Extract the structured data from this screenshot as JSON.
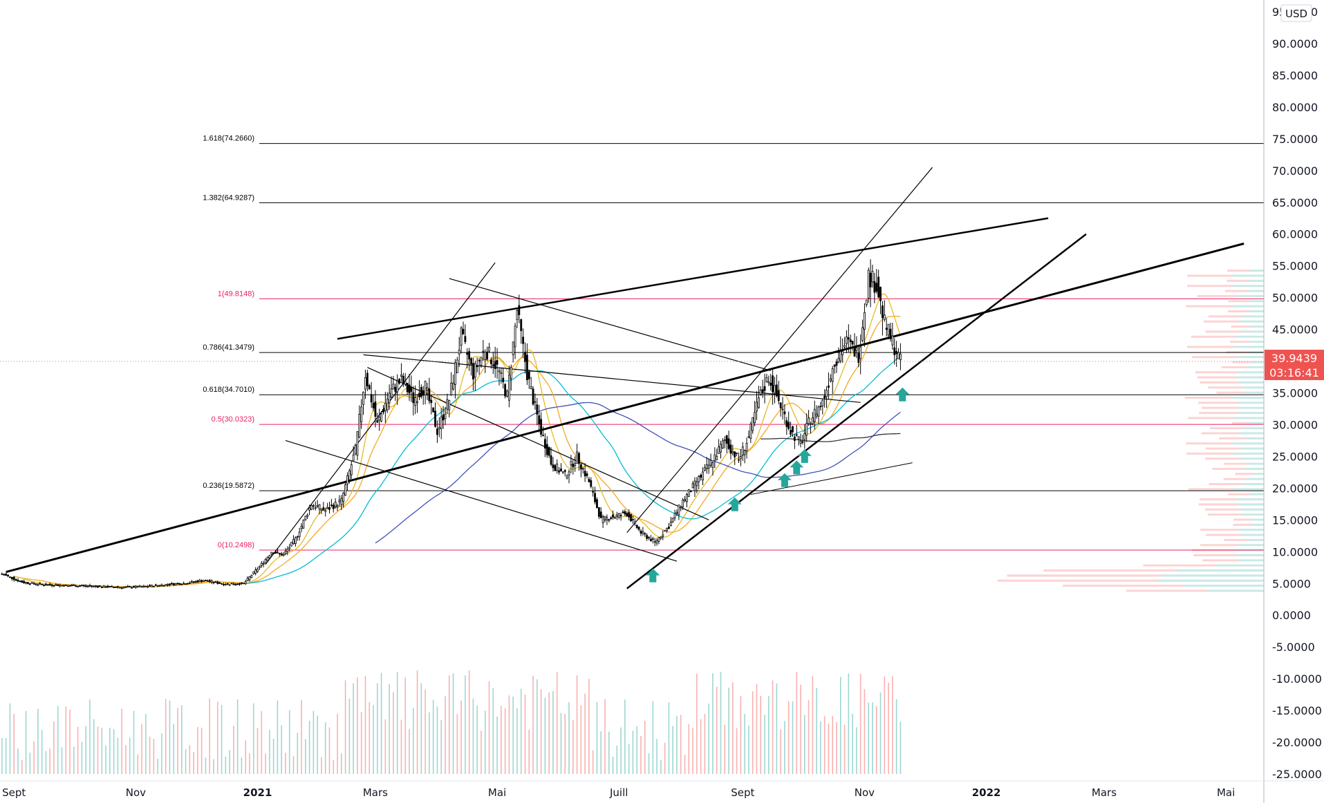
{
  "currency": "USD",
  "price_axis": {
    "ticks": [
      "95.0000",
      "90.0000",
      "85.0000",
      "80.0000",
      "75.0000",
      "70.0000",
      "65.0000",
      "60.0000",
      "55.0000",
      "50.0000",
      "45.0000",
      "40.0000",
      "35.0000",
      "30.0000",
      "25.0000",
      "20.0000",
      "15.0000",
      "10.0000",
      "5.0000",
      "0.0000",
      "-5.0000",
      "-10.0000",
      "-15.0000",
      "-20.0000",
      "-25.0000"
    ],
    "tick_values": [
      95,
      90,
      85,
      80,
      75,
      70,
      65,
      60,
      55,
      50,
      45,
      40,
      35,
      30,
      25,
      20,
      15,
      10,
      5,
      0,
      -5,
      -10,
      -15,
      -20,
      -25
    ]
  },
  "time_axis": {
    "labels": [
      {
        "text": "Sept",
        "date": "2020-09-01",
        "bold": false
      },
      {
        "text": "Nov",
        "date": "2020-11-01",
        "bold": false
      },
      {
        "text": "2021",
        "date": "2021-01-01",
        "bold": true
      },
      {
        "text": "Mars",
        "date": "2021-03-01",
        "bold": false
      },
      {
        "text": "Mai",
        "date": "2021-05-01",
        "bold": false
      },
      {
        "text": "Juill",
        "date": "2021-07-01",
        "bold": false
      },
      {
        "text": "Sept",
        "date": "2021-09-01",
        "bold": false
      },
      {
        "text": "Nov",
        "date": "2021-11-01",
        "bold": false
      },
      {
        "text": "2022",
        "date": "2022-01-01",
        "bold": true
      },
      {
        "text": "Mars",
        "date": "2022-03-01",
        "bold": false
      },
      {
        "text": "Mai",
        "date": "2022-05-01",
        "bold": false
      }
    ]
  },
  "last_price": {
    "value": "39.9439",
    "countdown": "03:16:41",
    "price": 39.9439
  },
  "chart_data": {
    "type": "candlestick",
    "title": "",
    "xlabel": "",
    "ylabel": "",
    "ylim": [
      -25,
      95
    ],
    "x_range": [
      "2020-08-25",
      "2022-05-20"
    ],
    "grid": false,
    "fibonacci_levels": [
      {
        "label": "1.618(74.2660)",
        "value": 74.266,
        "color": "#000000"
      },
      {
        "label": "1.382(64.9287)",
        "value": 64.9287,
        "color": "#000000"
      },
      {
        "label": "1(49.8148)",
        "value": 49.8148,
        "color": "#e91e63"
      },
      {
        "label": "0.786(41.3479)",
        "value": 41.3479,
        "color": "#000000"
      },
      {
        "label": "0.618(34.7010)",
        "value": 34.701,
        "color": "#000000"
      },
      {
        "label": "0.5(30.0323)",
        "value": 30.0323,
        "color": "#e91e63"
      },
      {
        "label": "0.236(19.5872)",
        "value": 19.5872,
        "color": "#000000"
      },
      {
        "label": "0(10.2498)",
        "value": 10.2498,
        "color": "#e91e63"
      }
    ],
    "price_series": {
      "name": "",
      "dates": [
        "2020-08-26",
        "2020-09-05",
        "2020-09-15",
        "2020-09-25",
        "2020-10-05",
        "2020-10-15",
        "2020-10-25",
        "2020-11-05",
        "2020-11-15",
        "2020-11-25",
        "2020-12-05",
        "2020-12-15",
        "2020-12-25",
        "2021-01-03",
        "2021-01-08",
        "2021-01-14",
        "2021-01-20",
        "2021-01-28",
        "2021-02-04",
        "2021-02-12",
        "2021-02-19",
        "2021-02-24",
        "2021-03-02",
        "2021-03-08",
        "2021-03-14",
        "2021-03-20",
        "2021-03-26",
        "2021-04-01",
        "2021-04-07",
        "2021-04-13",
        "2021-04-19",
        "2021-04-25",
        "2021-05-01",
        "2021-05-06",
        "2021-05-11",
        "2021-05-16",
        "2021-05-22",
        "2021-05-28",
        "2021-06-04",
        "2021-06-10",
        "2021-06-16",
        "2021-06-22",
        "2021-06-28",
        "2021-07-05",
        "2021-07-12",
        "2021-07-19",
        "2021-07-26",
        "2021-08-02",
        "2021-08-09",
        "2021-08-16",
        "2021-08-23",
        "2021-08-30",
        "2021-09-04",
        "2021-09-09",
        "2021-09-14",
        "2021-09-20",
        "2021-09-25",
        "2021-09-30",
        "2021-10-05",
        "2021-10-11",
        "2021-10-17",
        "2021-10-23",
        "2021-10-29",
        "2021-11-03",
        "2021-11-07",
        "2021-11-11",
        "2021-11-15",
        "2021-11-19"
      ],
      "close": [
        6.5,
        5.2,
        4.8,
        4.7,
        4.6,
        4.5,
        4.4,
        4.5,
        4.8,
        5.0,
        5.5,
        4.9,
        5.0,
        8.0,
        10.0,
        9.5,
        12.0,
        17.5,
        16.5,
        18.0,
        26.0,
        38.0,
        30.0,
        35.0,
        37.0,
        34.0,
        36.0,
        29.0,
        34.0,
        44.0,
        38.0,
        42.0,
        39.0,
        34.5,
        48.0,
        38.0,
        30.0,
        24.0,
        22.0,
        25.0,
        21.0,
        15.0,
        15.5,
        16.0,
        13.0,
        11.5,
        14.0,
        18.0,
        21.0,
        24.0,
        27.5,
        24.5,
        28.0,
        34.0,
        37.5,
        33.0,
        29.0,
        27.0,
        31.0,
        33.5,
        40.0,
        43.0,
        41.0,
        53.5,
        52.0,
        46.0,
        43.0,
        39.9439
      ]
    },
    "volume_profile": true,
    "arrows_up": [
      "2021-07-18",
      "2021-08-28",
      "2021-09-22",
      "2021-09-28",
      "2021-10-02",
      "2021-11-20"
    ]
  }
}
